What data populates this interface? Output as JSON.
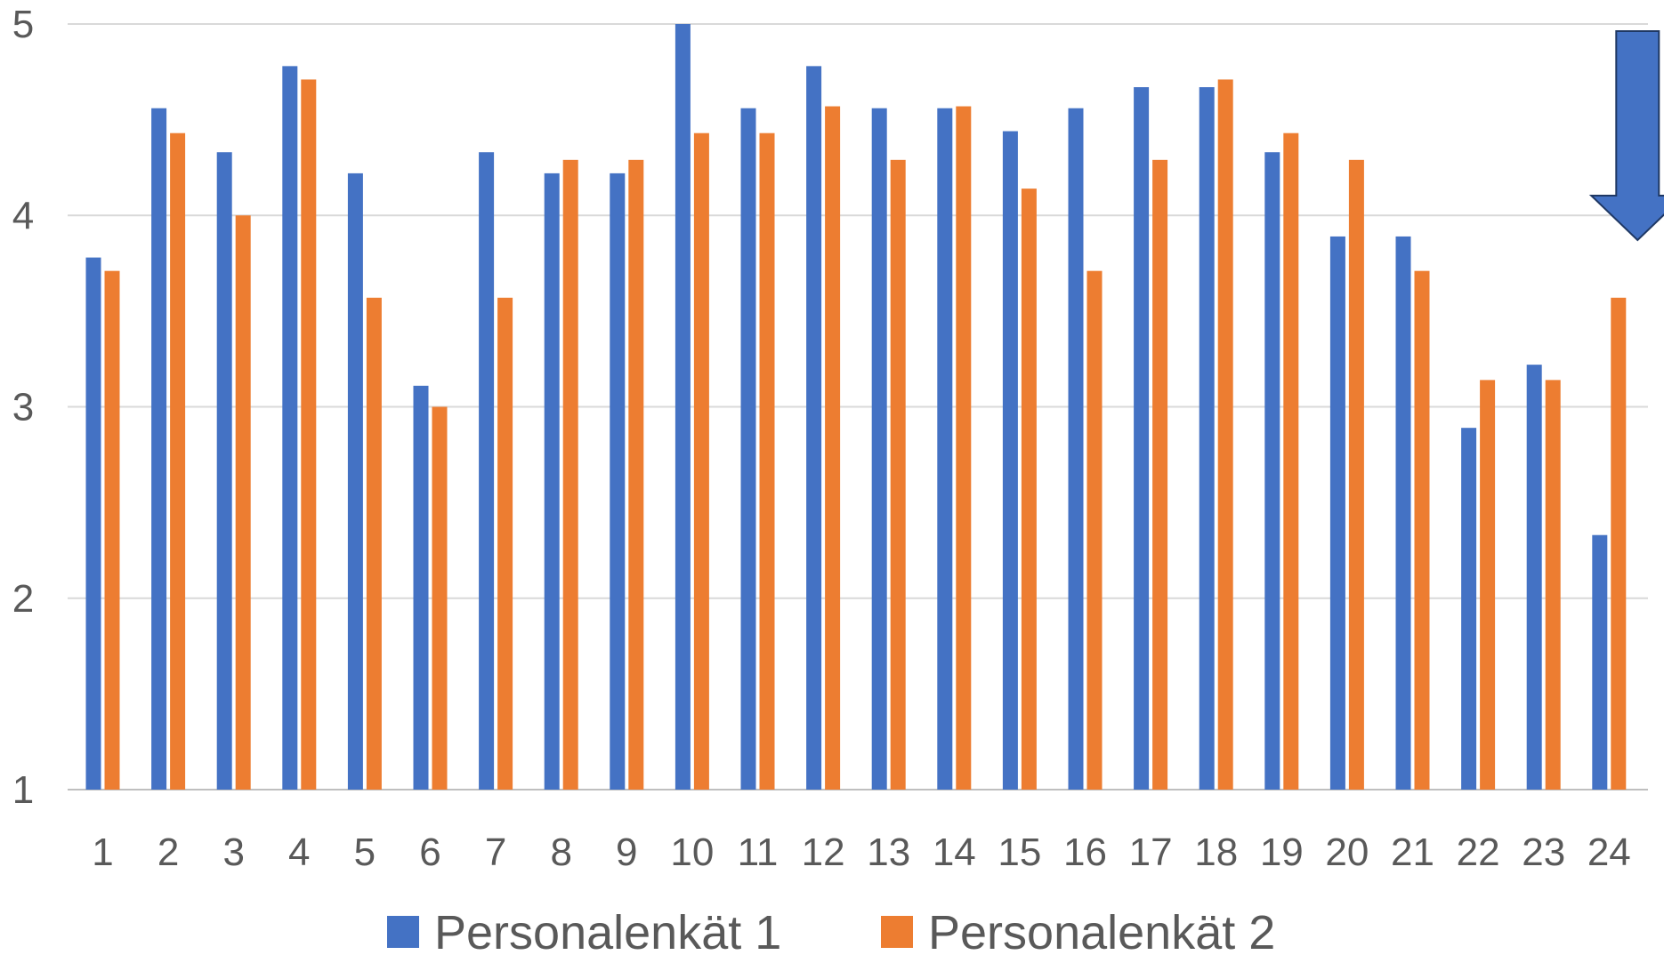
{
  "chart_data": {
    "type": "bar",
    "title": "",
    "xlabel": "",
    "ylabel": "",
    "ylim": [
      1,
      5
    ],
    "yticks": [
      1,
      2,
      3,
      4,
      5
    ],
    "grid": true,
    "legend_position": "bottom",
    "categories": [
      "1",
      "2",
      "3",
      "4",
      "5",
      "6",
      "7",
      "8",
      "9",
      "10",
      "11",
      "12",
      "13",
      "14",
      "15",
      "16",
      "17",
      "18",
      "19",
      "20",
      "21",
      "22",
      "23",
      "24"
    ],
    "series": [
      {
        "name": "Personalenkät 1",
        "color": "#4472C4",
        "values": [
          3.78,
          4.56,
          4.33,
          4.78,
          4.22,
          3.11,
          4.33,
          4.22,
          4.22,
          5.0,
          4.56,
          4.78,
          4.56,
          4.56,
          4.44,
          4.56,
          4.67,
          4.67,
          4.33,
          3.89,
          3.89,
          2.89,
          3.22,
          2.33
        ]
      },
      {
        "name": "Personalenkät 2",
        "color": "#ED7D31",
        "values": [
          3.71,
          4.43,
          4.0,
          4.71,
          3.57,
          3.0,
          3.57,
          4.29,
          4.29,
          4.43,
          4.43,
          4.57,
          4.29,
          4.57,
          4.14,
          3.71,
          4.29,
          4.71,
          4.43,
          4.29,
          3.71,
          3.14,
          3.14,
          3.57
        ]
      }
    ],
    "annotation": {
      "shape": "down-arrow",
      "points_to_category": "24",
      "fill": "#4472C4",
      "stroke": "#1F3864"
    }
  }
}
